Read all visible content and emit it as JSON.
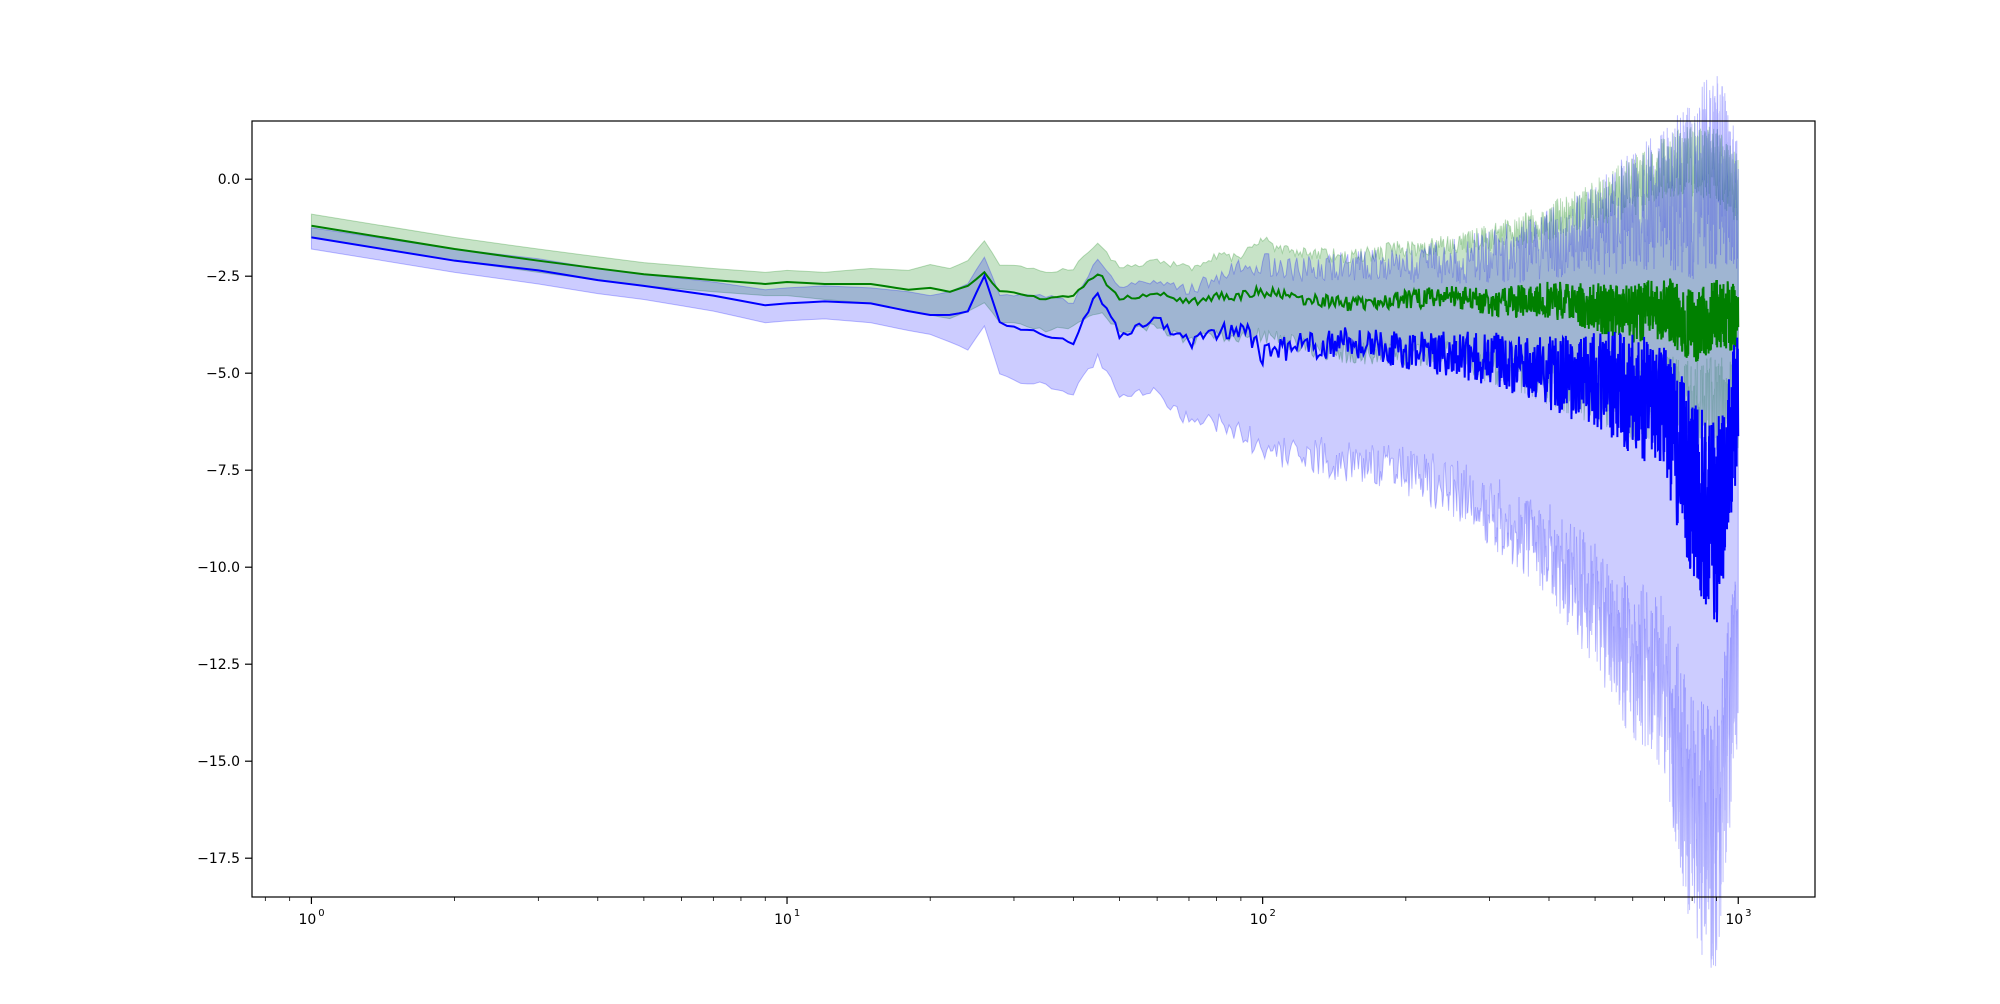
{
  "chart_data": {
    "type": "line",
    "title": "",
    "xlabel": "",
    "ylabel": "",
    "xscale": "log",
    "xlim": [
      0.75,
      1450
    ],
    "ylim": [
      -18.5,
      1.5
    ],
    "grid": false,
    "legend": "none",
    "x_ticks": [
      {
        "value": 1,
        "base": "10",
        "exp": "0"
      },
      {
        "value": 10,
        "base": "10",
        "exp": "1"
      },
      {
        "value": 100,
        "base": "10",
        "exp": "2"
      },
      {
        "value": 1000,
        "base": "10",
        "exp": "3"
      }
    ],
    "y_ticks": [
      {
        "value": 0.0,
        "label": "0.0"
      },
      {
        "value": -2.5,
        "label": "−2.5"
      },
      {
        "value": -5.0,
        "label": "−5.0"
      },
      {
        "value": -7.5,
        "label": "−7.5"
      },
      {
        "value": -10.0,
        "label": "−10.0"
      },
      {
        "value": -12.5,
        "label": "−12.5"
      },
      {
        "value": -15.0,
        "label": "−15.0"
      },
      {
        "value": -17.5,
        "label": "−17.5"
      }
    ],
    "series": [
      {
        "color": "#008000",
        "band_opacity": 0.22,
        "x": [
          1,
          2,
          3,
          4,
          5,
          7,
          9,
          10,
          12,
          15,
          18,
          20,
          22,
          24,
          26,
          28,
          30,
          35,
          40,
          45,
          50,
          60,
          70,
          80,
          90,
          100,
          120,
          150,
          200,
          250,
          300,
          400,
          500,
          600,
          700,
          800,
          900,
          1000
        ],
        "mean": [
          -1.2,
          -1.8,
          -2.1,
          -2.3,
          -2.45,
          -2.6,
          -2.7,
          -2.65,
          -2.7,
          -2.7,
          -2.85,
          -2.8,
          -2.9,
          -2.75,
          -2.4,
          -2.9,
          -2.9,
          -3.1,
          -3.0,
          -2.4,
          -3.1,
          -2.9,
          -3.2,
          -3.0,
          -3.0,
          -2.9,
          -3.1,
          -3.2,
          -3.1,
          -3.0,
          -3.2,
          -3.1,
          -3.3,
          -3.5,
          -3.3,
          -3.8,
          -3.5,
          -3.6
        ],
        "lower": [
          -1.5,
          -2.1,
          -2.4,
          -2.6,
          -2.75,
          -2.9,
          -3.0,
          -3.0,
          -3.1,
          -3.2,
          -3.4,
          -3.5,
          -3.6,
          -3.4,
          -3.2,
          -3.7,
          -3.7,
          -3.9,
          -3.8,
          -3.4,
          -3.9,
          -3.8,
          -4.2,
          -4.0,
          -4.1,
          -4.0,
          -4.3,
          -4.5,
          -4.5,
          -4.5,
          -4.8,
          -5.2,
          -5.5,
          -5.8,
          -5.5,
          -6.0,
          -5.8,
          -6.0
        ],
        "upper": [
          -0.9,
          -1.5,
          -1.8,
          -2.0,
          -2.15,
          -2.3,
          -2.4,
          -2.35,
          -2.4,
          -2.3,
          -2.35,
          -2.2,
          -2.3,
          -2.1,
          -1.6,
          -2.2,
          -2.2,
          -2.4,
          -2.3,
          -1.6,
          -2.3,
          -2.1,
          -2.3,
          -2.0,
          -2.0,
          -1.6,
          -1.9,
          -2.0,
          -1.8,
          -1.7,
          -1.5,
          -1.1,
          -0.6,
          -0.2,
          0.3,
          0.5,
          0.4,
          -0.3
        ]
      },
      {
        "color": "#0000ff",
        "band_opacity": 0.2,
        "x": [
          1,
          2,
          3,
          4,
          5,
          7,
          9,
          10,
          12,
          15,
          18,
          20,
          22,
          24,
          26,
          28,
          30,
          35,
          40,
          45,
          50,
          60,
          70,
          80,
          90,
          100,
          120,
          150,
          200,
          250,
          300,
          400,
          500,
          600,
          700,
          800,
          900,
          1000
        ],
        "mean": [
          -1.5,
          -2.1,
          -2.35,
          -2.6,
          -2.75,
          -3.0,
          -3.25,
          -3.2,
          -3.15,
          -3.2,
          -3.4,
          -3.5,
          -3.5,
          -3.4,
          -2.5,
          -3.7,
          -3.8,
          -4.0,
          -4.2,
          -2.9,
          -4.0,
          -3.6,
          -4.2,
          -4.0,
          -3.8,
          -4.5,
          -4.3,
          -4.2,
          -4.4,
          -4.5,
          -4.6,
          -5.0,
          -5.2,
          -5.5,
          -6.0,
          -8.0,
          -9.0,
          -5.5
        ],
        "lower": [
          -1.8,
          -2.4,
          -2.7,
          -2.95,
          -3.1,
          -3.4,
          -3.7,
          -3.65,
          -3.6,
          -3.7,
          -3.9,
          -4.0,
          -4.2,
          -4.4,
          -3.8,
          -5.0,
          -5.2,
          -5.3,
          -5.5,
          -4.6,
          -5.5,
          -5.5,
          -6.2,
          -6.3,
          -6.5,
          -7.0,
          -7.0,
          -7.3,
          -7.5,
          -8.0,
          -8.5,
          -9.5,
          -11.0,
          -12.5,
          -13.0,
          -16.5,
          -17.0,
          -12.0
        ],
        "upper": [
          -1.25,
          -1.8,
          -2.05,
          -2.3,
          -2.45,
          -2.65,
          -2.85,
          -2.8,
          -2.75,
          -2.8,
          -2.9,
          -3.0,
          -2.9,
          -2.7,
          -2.0,
          -3.0,
          -3.0,
          -3.0,
          -3.2,
          -2.0,
          -2.8,
          -2.6,
          -2.9,
          -2.5,
          -2.3,
          -2.2,
          -2.3,
          -2.2,
          -2.2,
          -2.1,
          -2.0,
          -1.7,
          -1.3,
          -0.8,
          -0.5,
          -0.2,
          0.2,
          -0.5
        ]
      }
    ]
  }
}
